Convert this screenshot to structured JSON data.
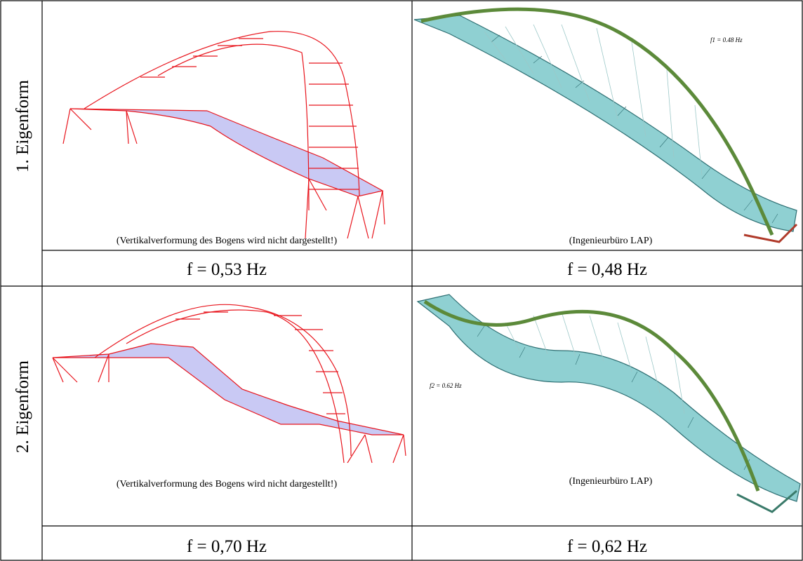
{
  "rows": [
    {
      "label": "1. Eigenform",
      "left": {
        "caption": "(Vertikalverformung des Bogens wird nicht dargestellt!)",
        "frequency": "f = 0,53 Hz"
      },
      "right": {
        "caption": "(Ingenieurbüro LAP)",
        "inset": "f1 = 0.48 Hz",
        "frequency": "f = 0,48 Hz"
      }
    },
    {
      "label": "2. Eigenform",
      "left": {
        "caption": "(Vertikalverformung des Bogens wird nicht dargestellt!)",
        "frequency": "f = 0,70 Hz"
      },
      "right": {
        "caption": "(Ingenieurbüro LAP)",
        "inset": "f2 = 0.62 Hz",
        "frequency": "f = 0,62 Hz"
      }
    }
  ]
}
